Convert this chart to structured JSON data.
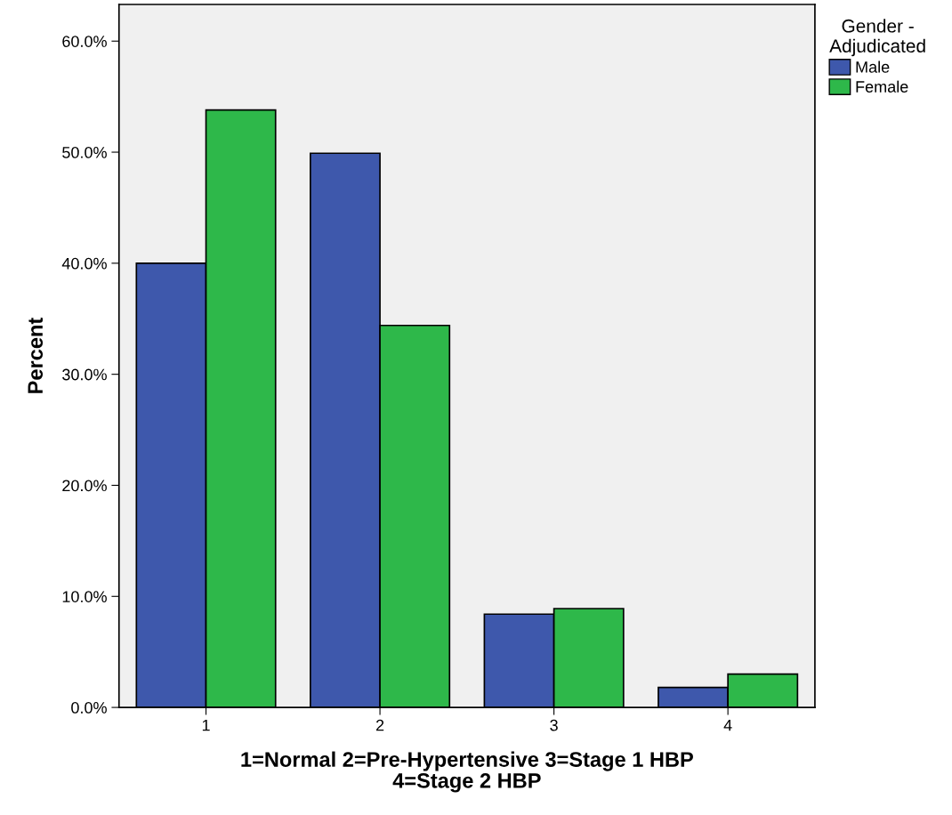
{
  "chart_data": {
    "type": "bar",
    "xlabel": "1=Normal 2=Pre-Hypertensive 3=Stage 1 HBP\n4=Stage 2 HBP",
    "ylabel": "Percent",
    "legend_title": "Gender -\nAdjudicated",
    "categories": [
      "1",
      "2",
      "3",
      "4"
    ],
    "series": [
      {
        "name": "Male",
        "color": "#3e58ac",
        "values": [
          40.0,
          49.9,
          8.4,
          1.8
        ]
      },
      {
        "name": "Female",
        "color": "#2eb84a",
        "values": [
          53.8,
          34.4,
          8.9,
          3.0
        ]
      }
    ],
    "ylim": [
      0,
      63.3
    ],
    "yticks": [
      {
        "value": 0,
        "label": "0.0%"
      },
      {
        "value": 10,
        "label": "10.0%"
      },
      {
        "value": 20,
        "label": "20.0%"
      },
      {
        "value": 30,
        "label": "30.0%"
      },
      {
        "value": 40,
        "label": "40.0%"
      },
      {
        "value": 50,
        "label": "50.0%"
      },
      {
        "value": 60,
        "label": "60.0%"
      }
    ],
    "grid": false,
    "legend": "top right"
  }
}
